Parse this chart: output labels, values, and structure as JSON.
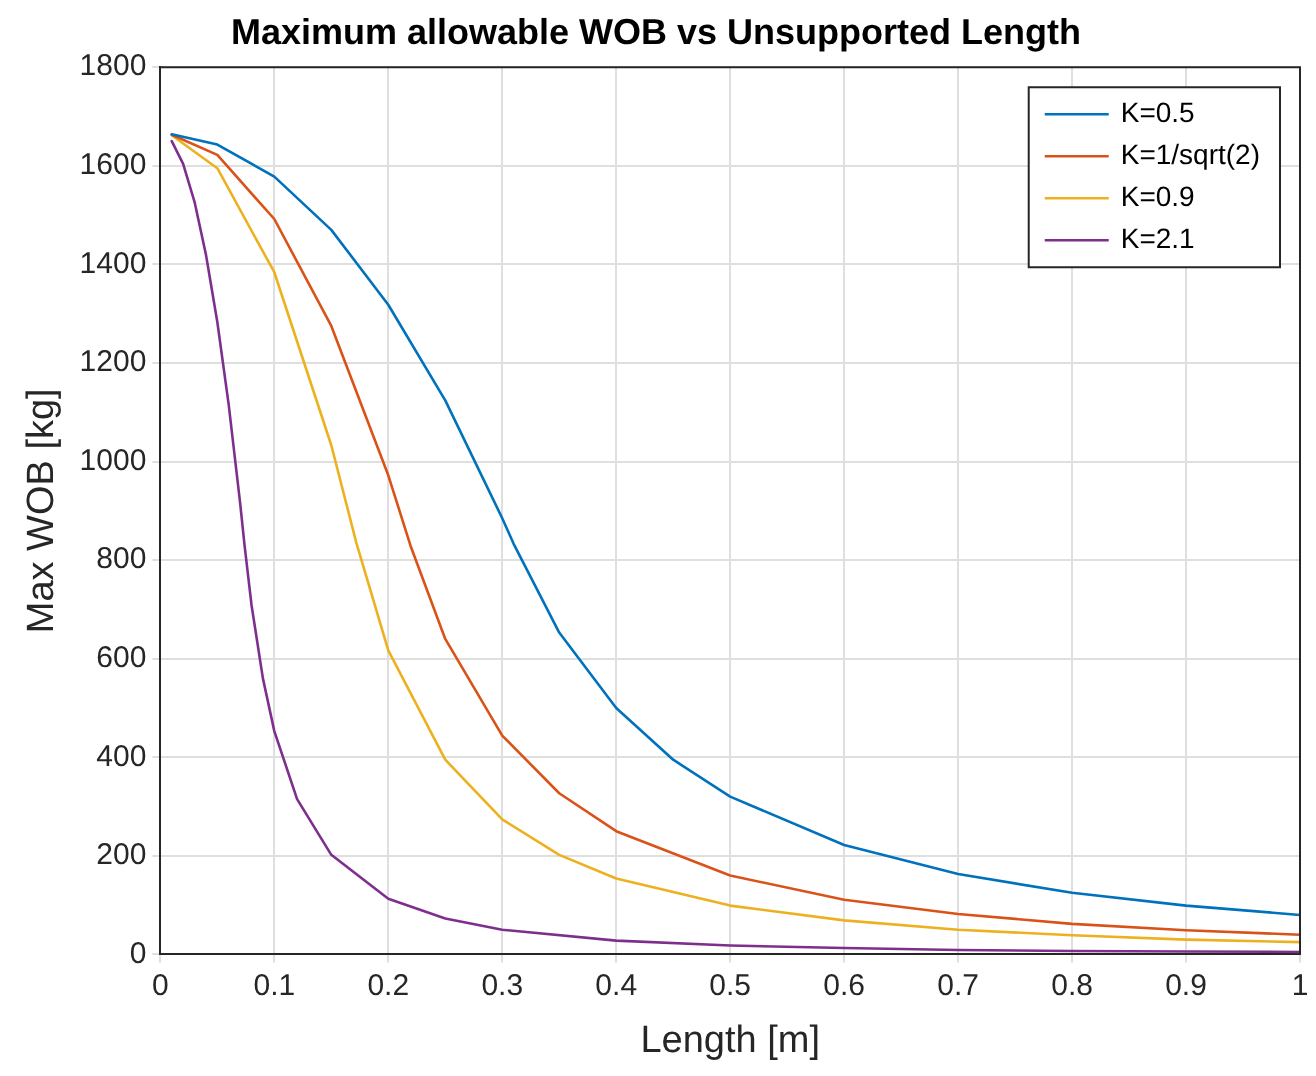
{
  "chart_data": {
    "type": "line",
    "title": "Maximum allowable WOB vs Unsupported Length",
    "xlabel": "Length [m]",
    "ylabel": "Max WOB [kg]",
    "xlim": [
      0,
      1
    ],
    "xticks": [
      0,
      0.1,
      0.2,
      0.3,
      0.4,
      0.5,
      0.6,
      0.7,
      0.8,
      0.9,
      1
    ],
    "ylim": [
      0,
      1800
    ],
    "yticks": [
      0,
      200,
      400,
      600,
      800,
      1000,
      1200,
      1400,
      1600,
      1800
    ],
    "grid": true,
    "legend": "top right",
    "marker": "none",
    "line_style": "solid",
    "series": [
      {
        "name": "K=0.5",
        "color": "#0072bd",
        "x": [
          0.01,
          0.05,
          0.1,
          0.15,
          0.2,
          0.25,
          0.3,
          0.31,
          0.35,
          0.4,
          0.45,
          0.5,
          0.6,
          0.7,
          0.8,
          0.9,
          1
        ],
        "values": [
          1664,
          1643,
          1578,
          1470,
          1318,
          1124,
          885,
          833,
          653,
          500,
          395,
          320,
          222,
          163,
          125,
          99,
          80
        ]
      },
      {
        "name": "K=1/sqrt(2)",
        "color": "#d95319",
        "x": [
          0.01,
          0.05,
          0.1,
          0.15,
          0.2,
          0.22,
          0.25,
          0.3,
          0.35,
          0.4,
          0.5,
          0.6,
          0.7,
          0.8,
          0.9,
          1
        ],
        "values": [
          1663,
          1622,
          1492,
          1275,
          972,
          826,
          640,
          444,
          327,
          250,
          160,
          111,
          82,
          62,
          49,
          40
        ]
      },
      {
        "name": "K=0.9",
        "color": "#edb120",
        "x": [
          0.01,
          0.05,
          0.1,
          0.15,
          0.172,
          0.2,
          0.25,
          0.3,
          0.35,
          0.4,
          0.5,
          0.6,
          0.7,
          0.8,
          0.9,
          1
        ],
        "values": [
          1662,
          1595,
          1384,
          1033,
          835,
          617,
          395,
          274,
          202,
          154,
          99,
          69,
          50,
          39,
          30,
          25
        ]
      },
      {
        "name": "K=2.1",
        "color": "#7e2f8e",
        "x": [
          0.01,
          0.02,
          0.03,
          0.04,
          0.05,
          0.06,
          0.07,
          0.074,
          0.08,
          0.09,
          0.1,
          0.12,
          0.15,
          0.2,
          0.25,
          0.3,
          0.4,
          0.5,
          0.6,
          0.7,
          0.8,
          0.9,
          1
        ],
        "values": [
          1650,
          1604,
          1527,
          1420,
          1283,
          1115,
          916,
          828,
          709,
          560,
          453,
          315,
          202,
          113,
          73,
          50,
          28,
          18,
          13,
          9,
          7,
          6,
          5
        ]
      }
    ]
  }
}
